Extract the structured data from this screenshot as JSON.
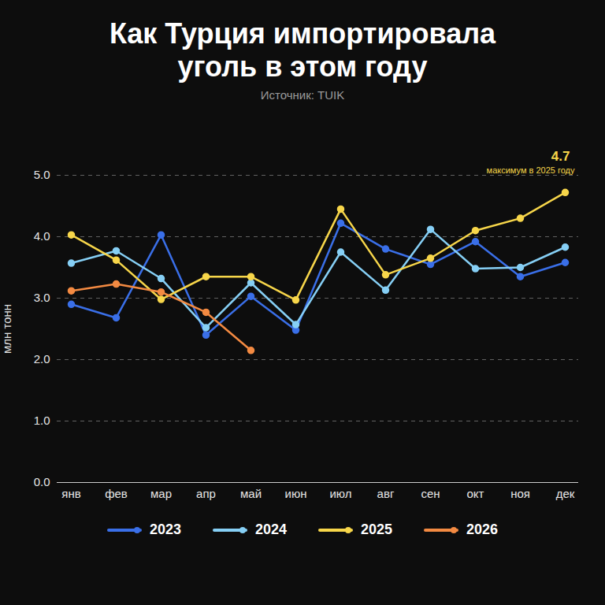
{
  "chart_data": {
    "type": "line",
    "title": "Как Турция импортировала уголь в этом году",
    "subtitle": "Источник: TUIK",
    "y_label": "млн тонн",
    "categories": [
      "янв",
      "фев",
      "мар",
      "апр",
      "май",
      "июн",
      "июл",
      "авг",
      "сен",
      "окт",
      "ноя",
      "дек"
    ],
    "series": [
      {
        "name": "2023",
        "color": "#3a6fe8",
        "values": [
          2.9,
          2.68,
          4.03,
          2.4,
          3.03,
          2.48,
          4.22,
          3.8,
          3.55,
          3.92,
          3.35,
          3.58
        ]
      },
      {
        "name": "2024",
        "color": "#86cff5",
        "values": [
          3.57,
          3.77,
          3.32,
          2.52,
          3.25,
          2.57,
          3.75,
          3.13,
          4.12,
          3.48,
          3.5,
          3.83
        ]
      },
      {
        "name": "2025",
        "color": "#f7d64a",
        "values": [
          4.03,
          3.62,
          2.98,
          3.35,
          3.35,
          2.97,
          4.45,
          3.38,
          3.65,
          4.1,
          4.3,
          4.72
        ]
      },
      {
        "name": "2026",
        "color": "#f38a42",
        "values": [
          3.12,
          3.23,
          3.1,
          2.77,
          2.15,
          null,
          null,
          null,
          null,
          null,
          null,
          null
        ]
      }
    ],
    "annotations": [
      {
        "label": "4.7",
        "note": "максимум в 2025 году",
        "category": "дек",
        "value": 4.72
      }
    ],
    "ylim": [
      0,
      5
    ],
    "yticks": [
      0,
      1,
      2,
      3,
      4,
      5
    ],
    "grid": true,
    "legend": "bottom",
    "marker": "circle"
  }
}
